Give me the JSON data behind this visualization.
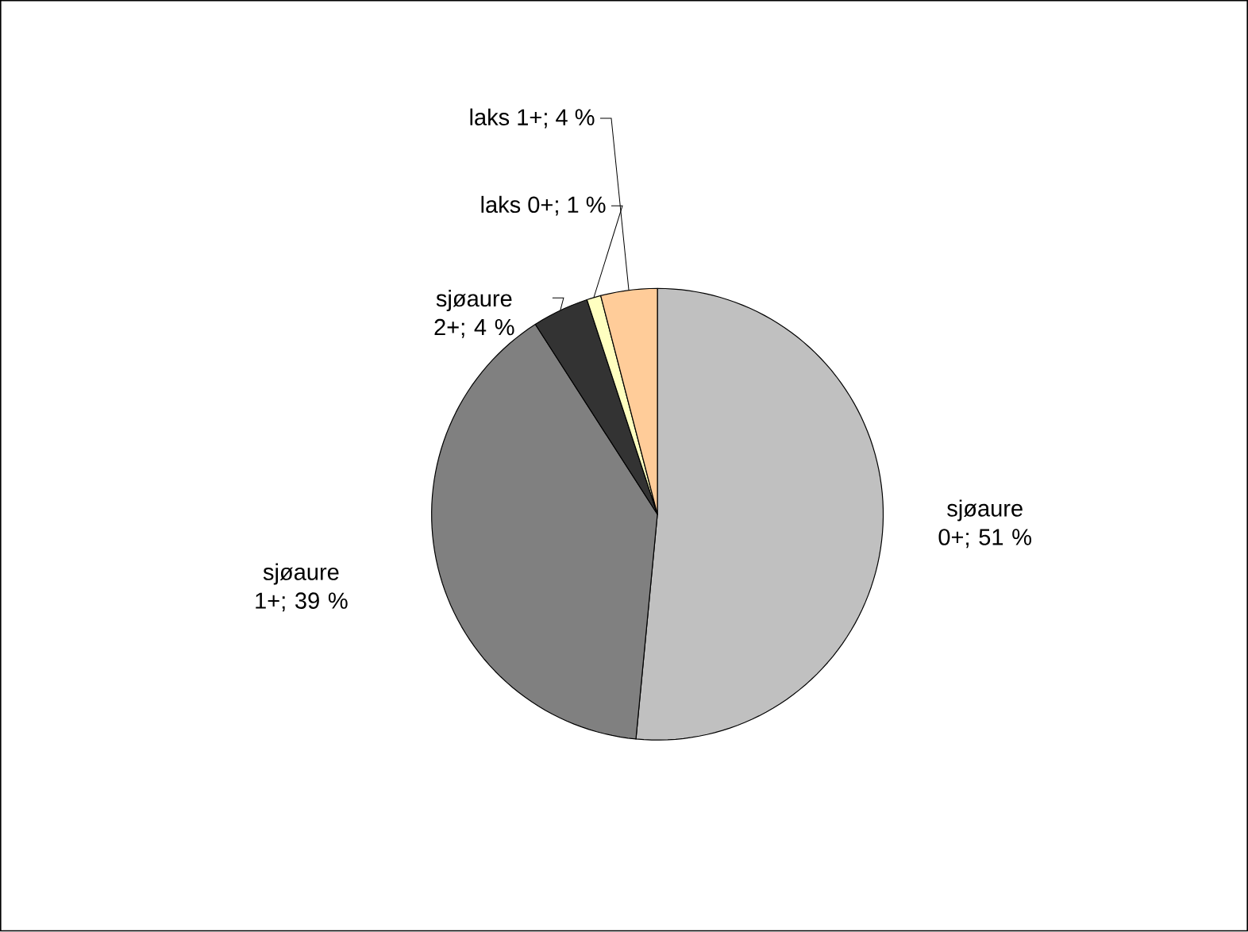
{
  "chart_data": {
    "type": "pie",
    "categories": [
      "sjøaure 0+",
      "sjøaure 1+",
      "sjøaure 2+",
      "laks 0+",
      "laks 1+"
    ],
    "values": [
      51,
      39,
      4,
      1,
      4
    ],
    "value_labels": [
      "; 51 %",
      "; 39 %",
      "; 4 %",
      "; 1 %",
      "; 4 %"
    ],
    "colors": [
      "#c0c0c0",
      "#808080",
      "#333333",
      "#ffffc0",
      "#ffcc99"
    ],
    "data_labels": true
  }
}
